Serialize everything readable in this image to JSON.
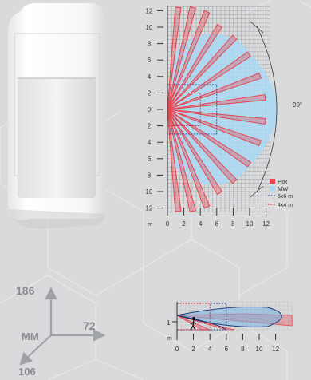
{
  "colors": {
    "background": "#d9dadb",
    "pir": "#e8434f",
    "mw": "#a9d8f2",
    "range6x6": "#2a3a8a",
    "range4x4": "#d9262e",
    "dimension_gray": "#8a8d90"
  },
  "top_chart": {
    "y_ticks": [
      "12",
      "10",
      "8",
      "6",
      "4",
      "2",
      "0",
      "2",
      "4",
      "6",
      "8",
      "10",
      "12"
    ],
    "x_unit": "m",
    "x_ticks": [
      "0",
      "2",
      "4",
      "6",
      "8",
      "10",
      "12"
    ],
    "angle_label": "90°",
    "legend": [
      {
        "label": "PIR",
        "type": "pir-swatch"
      },
      {
        "label": "MW",
        "type": "mw-swatch"
      },
      {
        "label": "6x6 m",
        "type": "dash-blue"
      },
      {
        "label": "4x4 m",
        "type": "dash-red"
      }
    ]
  },
  "side_chart": {
    "y_tick": "1",
    "x_unit": "m",
    "x_ticks": [
      "0",
      "2",
      "4",
      "6",
      "8",
      "10",
      "12"
    ]
  },
  "dimensions": {
    "height": "186",
    "width": "72",
    "depth": "106",
    "unit": "MM"
  },
  "icons": [
    "walking-person-icon"
  ]
}
